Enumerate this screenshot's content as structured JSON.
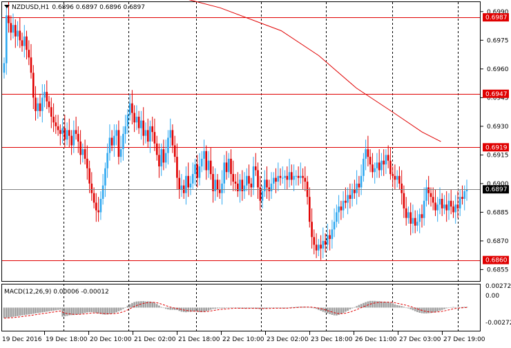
{
  "window": {
    "symbol_timeframe": "NZDUSD,H1",
    "ohlc": "0.6896 0.6897 0.6896 0.6897"
  },
  "colors": {
    "bull": "#2ea8f0",
    "bear": "#e00000",
    "level": "#e00000",
    "grid": "#000000",
    "macd_hist": "#a0a0a0",
    "macd_signal": "#e00000",
    "current_line": "#808080"
  },
  "price_axis": {
    "ticks": [
      "0.6990",
      "0.6975",
      "0.6960",
      "0.6945",
      "0.6930",
      "0.6915",
      "0.6900",
      "0.6885",
      "0.6870",
      "0.6855"
    ],
    "current_price": "0.6897"
  },
  "levels": [
    {
      "price": "0.6987"
    },
    {
      "price": "0.6947"
    },
    {
      "price": "0.6919"
    },
    {
      "price": "0.6860"
    }
  ],
  "time_axis": {
    "labels": [
      "19 Dec 2016",
      "19 Dec 18:00",
      "20 Dec 10:00",
      "21 Dec 02:00",
      "21 Dec 18:00",
      "22 Dec 10:00",
      "23 Dec 02:00",
      "23 Dec 18:00",
      "26 Dec 11:00",
      "27 Dec 03:00",
      "27 Dec 19:00"
    ]
  },
  "macd": {
    "title": "MACD(12,26,9) 0.00006 -0.00012",
    "ticks": [
      "0.00272",
      "0.00",
      "-0.00272"
    ],
    "min": -0.00272,
    "max": 0.00272
  },
  "chart_data": {
    "type": "candlestick",
    "symbol": "NZDUSD",
    "timeframe": "H1",
    "ylim": [
      0.6849,
      0.6995
    ],
    "closes": [
      0.6963,
      0.6988,
      0.6984,
      0.6979,
      0.6983,
      0.6977,
      0.698,
      0.6975,
      0.6972,
      0.6977,
      0.697,
      0.6966,
      0.6958,
      0.6945,
      0.6938,
      0.6942,
      0.6938,
      0.6945,
      0.6948,
      0.6943,
      0.694,
      0.6935,
      0.6932,
      0.693,
      0.6928,
      0.6926,
      0.6929,
      0.6923,
      0.6928,
      0.6925,
      0.692,
      0.6928,
      0.6926,
      0.6922,
      0.6915,
      0.6918,
      0.6913,
      0.6908,
      0.69,
      0.6895,
      0.689,
      0.6886,
      0.6885,
      0.6892,
      0.6899,
      0.6908,
      0.6916,
      0.6924,
      0.692,
      0.6925,
      0.6928,
      0.6914,
      0.6918,
      0.6926,
      0.693,
      0.6936,
      0.6942,
      0.6937,
      0.6932,
      0.6935,
      0.6929,
      0.6933,
      0.6925,
      0.6928,
      0.6922,
      0.693,
      0.6927,
      0.6921,
      0.6915,
      0.6909,
      0.6918,
      0.6911,
      0.6916,
      0.6924,
      0.6928,
      0.692,
      0.6914,
      0.6903,
      0.6897,
      0.6899,
      0.6895,
      0.6904,
      0.6898,
      0.69,
      0.6905,
      0.691,
      0.6903,
      0.6909,
      0.6913,
      0.6917,
      0.6907,
      0.6912,
      0.6905,
      0.6896,
      0.6902,
      0.6897,
      0.6895,
      0.69,
      0.6911,
      0.6906,
      0.6913,
      0.6905,
      0.6901,
      0.69,
      0.6896,
      0.6902,
      0.6896,
      0.6899,
      0.6904,
      0.69,
      0.6898,
      0.6909,
      0.6907,
      0.6898,
      0.6891,
      0.6896,
      0.6902,
      0.6898,
      0.6896,
      0.69,
      0.6903,
      0.6901,
      0.6904,
      0.6903,
      0.6903,
      0.6904,
      0.6902,
      0.6906,
      0.6902,
      0.6904,
      0.6904,
      0.6903,
      0.6904,
      0.6903,
      0.6901,
      0.6893,
      0.688,
      0.6872,
      0.6868,
      0.6865,
      0.6868,
      0.6866,
      0.687,
      0.6868,
      0.6873,
      0.6871,
      0.6876,
      0.688,
      0.6885,
      0.6888,
      0.6886,
      0.6891,
      0.689,
      0.6894,
      0.6892,
      0.6897,
      0.6895,
      0.69,
      0.6898,
      0.6904,
      0.6913,
      0.6918,
      0.6914,
      0.691,
      0.6906,
      0.6908,
      0.6911,
      0.6907,
      0.6912,
      0.691,
      0.6915,
      0.6912,
      0.6905,
      0.6904,
      0.6902,
      0.6904,
      0.69,
      0.6895,
      0.6887,
      0.6882,
      0.6885,
      0.6879,
      0.6882,
      0.6878,
      0.688,
      0.6884,
      0.6882,
      0.6891,
      0.6898,
      0.6895,
      0.6893,
      0.689,
      0.6886,
      0.6889,
      0.6892,
      0.6887,
      0.6889,
      0.6886,
      0.6891,
      0.6888,
      0.6885,
      0.6889,
      0.6887,
      0.6893,
      0.6892,
      0.6896,
      0.6897
    ],
    "ma_line": {
      "color": "#e00000",
      "points": [
        [
          70,
          0.6999
        ],
        [
          92,
          0.6992
        ],
        [
          118,
          0.698
        ],
        [
          134,
          0.6967
        ],
        [
          150,
          0.695
        ],
        [
          166,
          0.6937
        ],
        [
          178,
          0.6927
        ],
        [
          186,
          0.6922
        ]
      ]
    },
    "horizontal_levels": [
      0.6987,
      0.6947,
      0.6919,
      0.686
    ]
  }
}
